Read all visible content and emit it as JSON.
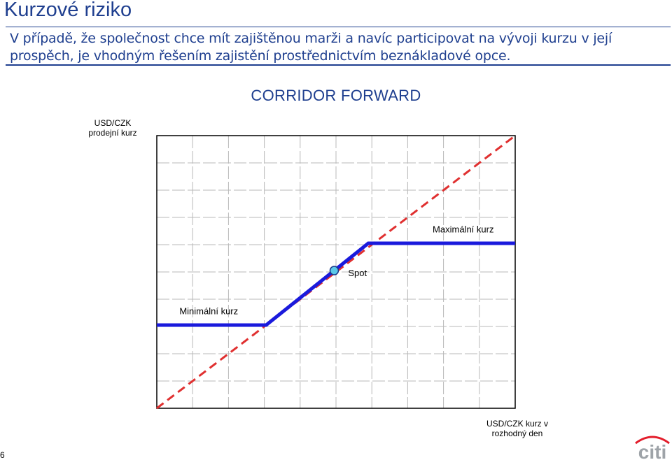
{
  "slide": {
    "title": "Kurzové riziko",
    "subtitle": "V případě, že společnost chce mít zajištěnou marži a navíc participovat na vývoji kurzu v její prospěch, je vhodným řešením zajistění prostřednictvím beznákladové opce.",
    "page_number": "6",
    "logo_text": "citi"
  },
  "colors": {
    "heading": "#1f3f8f",
    "payoff_line": "#1a1adc",
    "forward_line": "#e03030",
    "spot_marker": "#5bc8e8",
    "grid": "#b8b8b8"
  },
  "chart_data": {
    "type": "line",
    "title": "CORRIDOR FORWARD",
    "xlabel": "USD/CZK kurz v rozhodný den",
    "ylabel": "USD/CZK prodejní kurz",
    "grid": true,
    "xlim": [
      0,
      10
    ],
    "ylim": [
      0,
      10
    ],
    "series": [
      {
        "style": "solid",
        "color": "#1a1adc",
        "points": [
          [
            0,
            3.05
          ],
          [
            3.05,
            3.05
          ],
          [
            5.9,
            6.05
          ],
          [
            10,
            6.05
          ]
        ]
      },
      {
        "style": "dashed",
        "color": "#e03030",
        "points": [
          [
            0,
            0
          ],
          [
            10,
            10
          ]
        ]
      }
    ],
    "markers": [
      {
        "label": "Spot",
        "x": 4.95,
        "y": 5.05
      }
    ],
    "annotations": [
      {
        "text": "Maximální kurz",
        "x": 8.55,
        "y": 6.45
      },
      {
        "text": "Spot",
        "x": 5.6,
        "y": 4.85
      },
      {
        "text": "Minimální kurz",
        "x": 1.45,
        "y": 3.45
      }
    ]
  }
}
